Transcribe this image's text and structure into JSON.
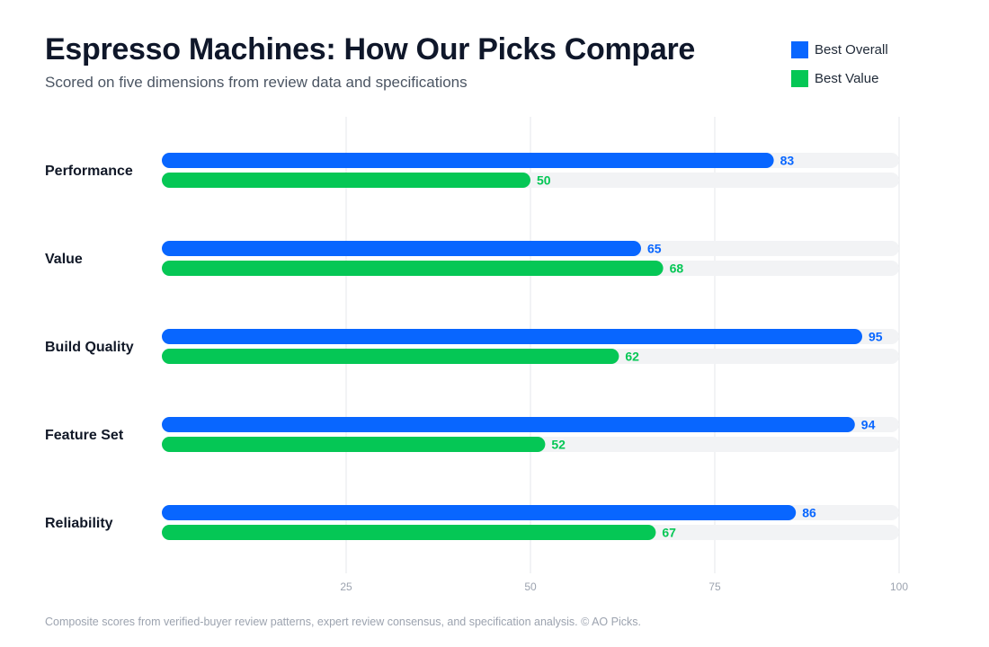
{
  "title": "Espresso Machines: How Our Picks Compare",
  "subtitle": "Scored on five dimensions from review data and specifications",
  "footnote": "Composite scores from verified-buyer review patterns, expert review consensus, and specification analysis. © AO Picks.",
  "colors": {
    "best_overall": "#0866ff",
    "best_value": "#05c755",
    "track": "#f2f3f5",
    "grid": "#e5e7eb"
  },
  "legend": [
    {
      "name": "Best Overall",
      "color": "#0866ff"
    },
    {
      "name": "Best Value",
      "color": "#05c755"
    }
  ],
  "chart_data": {
    "type": "bar",
    "orientation": "horizontal",
    "title": "Espresso Machines: How Our Picks Compare",
    "subtitle": "Scored on five dimensions from review data and specifications",
    "categories": [
      "Performance",
      "Value",
      "Build Quality",
      "Feature Set",
      "Reliability"
    ],
    "series": [
      {
        "name": "Best Overall",
        "color": "#0866ff",
        "values": [
          83,
          65,
          95,
          94,
          86
        ]
      },
      {
        "name": "Best Value",
        "color": "#05c755",
        "values": [
          50,
          68,
          62,
          52,
          67
        ]
      }
    ],
    "xlim": [
      0,
      100
    ],
    "xticks": [
      25,
      50,
      75,
      100
    ],
    "grid": true,
    "legend_position": "top-right",
    "data_labels": true
  }
}
